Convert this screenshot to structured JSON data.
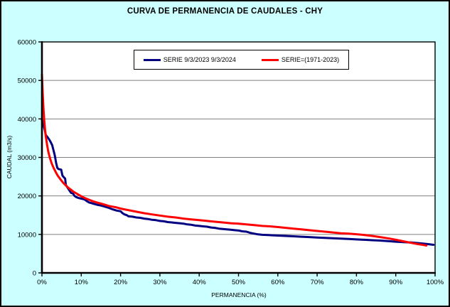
{
  "window": {
    "title": "CURVA DE PERMANENCIA DE CAUDALES - CHY"
  },
  "colors": {
    "background": "#ccffff",
    "plot_background": "#ffffff",
    "frame_border": "#000000",
    "gridline": "#808080",
    "series_blue": "#000080",
    "series_red": "#ff0000"
  },
  "chart_data": {
    "type": "line",
    "title": "CURVA DE PERMANENCIA DE CAUDALES - CHY",
    "xlabel": "PERMANENCIA (%)",
    "ylabel": "CAUDAL (m3/s)",
    "xlim": [
      0,
      100
    ],
    "ylim": [
      0,
      60000
    ],
    "xticks": [
      0,
      10,
      20,
      30,
      40,
      50,
      60,
      70,
      80,
      90,
      100
    ],
    "xtick_labels": [
      "0%",
      "10%",
      "20%",
      "30%",
      "40%",
      "50%",
      "60%",
      "70%",
      "80%",
      "90%",
      "100%"
    ],
    "yticks": [
      0,
      10000,
      20000,
      30000,
      40000,
      50000,
      60000
    ],
    "ytick_labels": [
      "0",
      "10000",
      "20000",
      "30000",
      "40000",
      "50000",
      "60000"
    ],
    "grid": "horizontal",
    "legend_position": "top-center-inside",
    "series": [
      {
        "name": "SERIE 9/3/2023 9/3/2024",
        "color": "#000080",
        "points": [
          [
            0,
            39800
          ],
          [
            0.3,
            38800
          ],
          [
            0.6,
            37600
          ],
          [
            1,
            35800
          ],
          [
            1.4,
            35300
          ],
          [
            1.8,
            34700
          ],
          [
            2.2,
            34000
          ],
          [
            2.6,
            33200
          ],
          [
            3,
            31600
          ],
          [
            3.3,
            30400
          ],
          [
            3.6,
            28600
          ],
          [
            3.9,
            27300
          ],
          [
            4.2,
            27000
          ],
          [
            4.9,
            26800
          ],
          [
            5.2,
            25300
          ],
          [
            5.6,
            24800
          ],
          [
            5.9,
            24500
          ],
          [
            6.1,
            22800
          ],
          [
            6.5,
            22200
          ],
          [
            7,
            21400
          ],
          [
            7.4,
            20800
          ],
          [
            7.9,
            20600
          ],
          [
            8.3,
            20000
          ],
          [
            8.7,
            19700
          ],
          [
            9.2,
            19500
          ],
          [
            10,
            19300
          ],
          [
            10.8,
            19100
          ],
          [
            11.5,
            18600
          ],
          [
            12,
            18300
          ],
          [
            13,
            18000
          ],
          [
            14,
            17700
          ],
          [
            15,
            17500
          ],
          [
            16,
            17200
          ],
          [
            17,
            16900
          ],
          [
            18,
            16500
          ],
          [
            19,
            16200
          ],
          [
            20,
            16000
          ],
          [
            20.5,
            15500
          ],
          [
            21,
            15200
          ],
          [
            21.6,
            15000
          ],
          [
            22,
            14700
          ],
          [
            23,
            14600
          ],
          [
            24,
            14400
          ],
          [
            25,
            14300
          ],
          [
            26,
            14100
          ],
          [
            27,
            14000
          ],
          [
            28,
            13800
          ],
          [
            29,
            13700
          ],
          [
            30,
            13500
          ],
          [
            31,
            13400
          ],
          [
            32,
            13200
          ],
          [
            33,
            13100
          ],
          [
            34,
            13000
          ],
          [
            35,
            12900
          ],
          [
            36,
            12800
          ],
          [
            37,
            12600
          ],
          [
            38,
            12500
          ],
          [
            39,
            12300
          ],
          [
            40,
            12200
          ],
          [
            41,
            12100
          ],
          [
            42,
            12000
          ],
          [
            43,
            11800
          ],
          [
            44,
            11700
          ],
          [
            45,
            11500
          ],
          [
            46,
            11400
          ],
          [
            47,
            11300
          ],
          [
            48,
            11200
          ],
          [
            49,
            11100
          ],
          [
            50,
            11000
          ],
          [
            51,
            10800
          ],
          [
            52,
            10700
          ],
          [
            53,
            10400
          ],
          [
            54,
            10200
          ],
          [
            55,
            10000
          ],
          [
            56,
            9900
          ],
          [
            58,
            9800
          ],
          [
            60,
            9700
          ],
          [
            62,
            9600
          ],
          [
            64,
            9500
          ],
          [
            66,
            9400
          ],
          [
            68,
            9300
          ],
          [
            70,
            9200
          ],
          [
            72,
            9100
          ],
          [
            74,
            9000
          ],
          [
            76,
            8900
          ],
          [
            78,
            8800
          ],
          [
            80,
            8700
          ],
          [
            82,
            8600
          ],
          [
            84,
            8500
          ],
          [
            86,
            8400
          ],
          [
            88,
            8250
          ],
          [
            90,
            8100
          ],
          [
            92,
            8000
          ],
          [
            94,
            7900
          ],
          [
            96,
            7700
          ],
          [
            98,
            7500
          ],
          [
            99.6,
            7300
          ]
        ]
      },
      {
        "name": "SERIE=(1971-2023)",
        "color": "#ff0000",
        "points": [
          [
            0,
            51500
          ],
          [
            0.2,
            46500
          ],
          [
            0.4,
            42500
          ],
          [
            0.6,
            39500
          ],
          [
            0.8,
            37200
          ],
          [
            1,
            35300
          ],
          [
            1.3,
            33300
          ],
          [
            1.6,
            31600
          ],
          [
            2,
            29900
          ],
          [
            2.5,
            28400
          ],
          [
            3,
            27200
          ],
          [
            3.5,
            26200
          ],
          [
            4,
            25300
          ],
          [
            4.5,
            24600
          ],
          [
            5,
            23900
          ],
          [
            5.5,
            23300
          ],
          [
            6,
            22800
          ],
          [
            6.5,
            22300
          ],
          [
            7,
            21900
          ],
          [
            7.5,
            21500
          ],
          [
            8,
            21100
          ],
          [
            8.5,
            20800
          ],
          [
            9,
            20500
          ],
          [
            9.5,
            20200
          ],
          [
            10,
            19900
          ],
          [
            11,
            19400
          ],
          [
            12,
            19000
          ],
          [
            13,
            18600
          ],
          [
            14,
            18300
          ],
          [
            15,
            18000
          ],
          [
            16,
            17700
          ],
          [
            17,
            17400
          ],
          [
            18,
            17200
          ],
          [
            19,
            17000
          ],
          [
            20,
            16700
          ],
          [
            21,
            16500
          ],
          [
            22,
            16300
          ],
          [
            24,
            15900
          ],
          [
            26,
            15500
          ],
          [
            28,
            15200
          ],
          [
            30,
            14900
          ],
          [
            32,
            14600
          ],
          [
            34,
            14400
          ],
          [
            36,
            14100
          ],
          [
            38,
            13900
          ],
          [
            40,
            13700
          ],
          [
            42,
            13500
          ],
          [
            44,
            13300
          ],
          [
            46,
            13100
          ],
          [
            48,
            12900
          ],
          [
            50,
            12800
          ],
          [
            52,
            12600
          ],
          [
            54,
            12400
          ],
          [
            56,
            12200
          ],
          [
            58,
            12100
          ],
          [
            60,
            11900
          ],
          [
            62,
            11700
          ],
          [
            64,
            11500
          ],
          [
            66,
            11300
          ],
          [
            68,
            11100
          ],
          [
            70,
            10900
          ],
          [
            72,
            10700
          ],
          [
            74,
            10500
          ],
          [
            76,
            10300
          ],
          [
            78,
            10200
          ],
          [
            80,
            10050
          ],
          [
            82,
            9850
          ],
          [
            84,
            9600
          ],
          [
            86,
            9300
          ],
          [
            88,
            9000
          ],
          [
            90,
            8600
          ],
          [
            92,
            8200
          ],
          [
            94,
            7800
          ],
          [
            95.5,
            7500
          ],
          [
            97,
            7250
          ],
          [
            97.8,
            7100
          ]
        ]
      }
    ]
  }
}
